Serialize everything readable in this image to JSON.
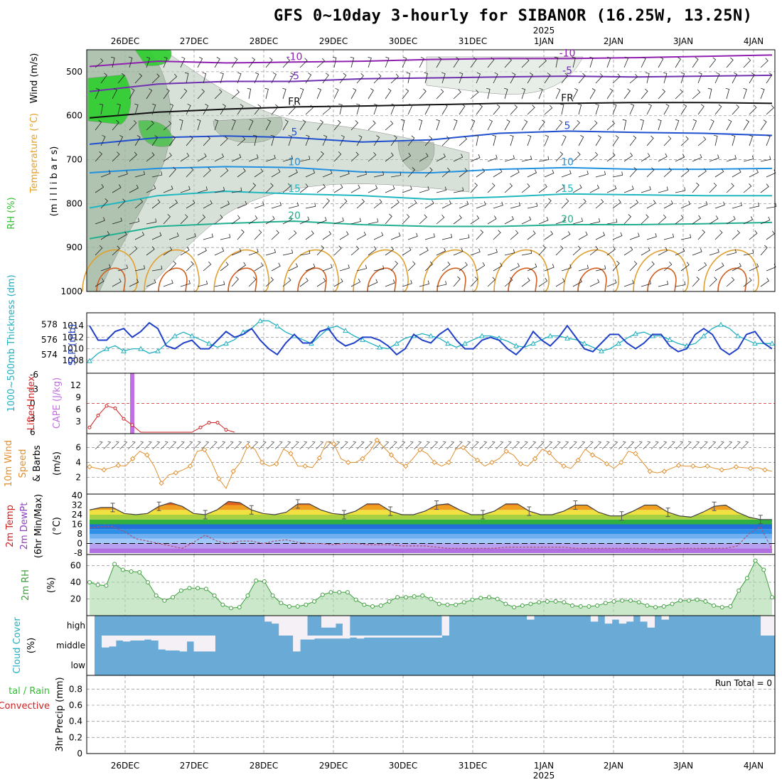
{
  "title": "GFS 0~10day 3-hourly for SIBANOR (16.25W, 13.25N)",
  "colors": {
    "rh_green": "#2fbf2f",
    "temp_red": "#d02020",
    "temp_orange": "#e8a020",
    "dew_purple": "#9040c0",
    "cape_purple": "#c070e0",
    "slp_blue": "#2040c8",
    "thick_cyan": "#20b0c0",
    "wind_orange": "#e09030",
    "rh2m_green": "#40a040",
    "cloud_blue": "#6aaad6",
    "cloud_white": "#f4f0f6",
    "precip_green": "#30c030"
  },
  "chart_data": [
    {
      "type": "area",
      "id": "upper-air",
      "ylabel": [
        "RH (%)",
        "Temperature (°C)",
        "Wind (m/s)",
        "(m i l l i b a r s)"
      ],
      "x_dates": [
        "26DEC",
        "27DEC",
        "28DEC",
        "29DEC",
        "30DEC",
        "31DEC",
        "1JAN",
        "2JAN",
        "3JAN",
        "4JAN"
      ],
      "year_label": "2025",
      "yticks": [
        500,
        600,
        700,
        800,
        900,
        1000
      ],
      "ylim": [
        450,
        1000
      ],
      "isotherms": [
        {
          "label": "-10",
          "levels": [
            488,
            476,
            480,
            478,
            476,
            472,
            470,
            470,
            468,
            465,
            462
          ]
        },
        {
          "label": "-5",
          "levels": [
            545,
            528,
            522,
            522,
            516,
            514,
            512,
            510,
            512,
            510,
            508
          ]
        },
        {
          "label": "FR",
          "levels": [
            605,
            592,
            585,
            580,
            578,
            575,
            572,
            572,
            570,
            570,
            572
          ]
        },
        {
          "label": "5",
          "levels": [
            665,
            650,
            646,
            650,
            660,
            655,
            640,
            635,
            638,
            640,
            645
          ]
        },
        {
          "label": "10",
          "levels": [
            730,
            720,
            716,
            718,
            728,
            730,
            722,
            718,
            722,
            722,
            720
          ]
        },
        {
          "label": "15",
          "levels": [
            810,
            782,
            772,
            778,
            782,
            790,
            785,
            778,
            780,
            782,
            782
          ]
        },
        {
          "label": "20",
          "levels": [
            880,
            852,
            845,
            840,
            848,
            852,
            852,
            848,
            848,
            846,
            843
          ]
        }
      ],
      "contour_labels": [
        "-10",
        "-5",
        "FR",
        "5",
        "10",
        "15",
        "20",
        "-10",
        "-5",
        "FR",
        "5",
        "10",
        "15",
        "20"
      ]
    },
    {
      "type": "line",
      "id": "slp-thickness",
      "ylabel_left": "1000~500mb Thickness (dm)",
      "ylabel_right": "SLP (mb)",
      "left_ticks": [
        574,
        576,
        578
      ],
      "right_ticks": [
        1008,
        1010,
        1012,
        1014
      ],
      "series": [
        {
          "name": "SLP (mb)",
          "values": [
            1014,
            1011.5,
            1011.5,
            1013,
            1013.5,
            1012,
            1013,
            1014.5,
            1013.5,
            1010.5,
            1010,
            1011,
            1011.5,
            1010,
            1010,
            1011.5,
            1013,
            1012,
            1012.5,
            1013.5,
            1011.5,
            1010,
            1009,
            1011,
            1012.5,
            1011,
            1011,
            1013,
            1013.5,
            1011.5,
            1010.5,
            1011,
            1012,
            1012,
            1011.5,
            1010.5,
            1009,
            1010,
            1012.5,
            1011.5,
            1011,
            1012.5,
            1013.5,
            1011.5,
            1010,
            1010,
            1011.5,
            1012,
            1011.5,
            1010,
            1009,
            1010.5,
            1013,
            1011.5,
            1010.5,
            1012,
            1014,
            1012,
            1010,
            1009.5,
            1011,
            1012.5,
            1012.5,
            1011,
            1010,
            1011,
            1012.5,
            1012.5,
            1010.5,
            1009.5,
            1010,
            1012.5,
            1013.5,
            1012.5,
            1010,
            1009,
            1010,
            1012.5,
            1013,
            1011,
            1010
          ]
        },
        {
          "name": "1000~500mb Thickness (dm)",
          "values": [
            573.2,
            574.2,
            574.8,
            575.2,
            574.5,
            574.8,
            574.8,
            574.2,
            574.5,
            575.5,
            576.5,
            577,
            576.5,
            576,
            575.5,
            575,
            575.5,
            576,
            577,
            577.5,
            578.5,
            578.5,
            577.8,
            577,
            576.5,
            576,
            575.5,
            576.5,
            577.5,
            577.8,
            577.2,
            576.5,
            576,
            575.5,
            575,
            574.8,
            575.5,
            576.2,
            576.5,
            576.8,
            576.5,
            576.2,
            575.5,
            575,
            575.5,
            576,
            576.5,
            576.5,
            576.2,
            575.8,
            575.2,
            575,
            575.5,
            576,
            576.5,
            576.5,
            576.2,
            576,
            575.5,
            575,
            574.5,
            574.8,
            575.5,
            576.2,
            576.8,
            577,
            576.5,
            576.5,
            576,
            575.5,
            575.2,
            575.5,
            576.5,
            577.5,
            578,
            577.5,
            576.5,
            576,
            575.5,
            575.5,
            575.5
          ]
        }
      ]
    },
    {
      "type": "bar",
      "id": "cape-li",
      "ylabel_left": "Lifted Index",
      "ylabel_right": "CAPE (J/kg)",
      "left_ticks": [
        "-6",
        "-3",
        "0",
        "3",
        "6"
      ],
      "right_ticks": [
        3,
        6,
        9,
        12
      ],
      "cape": [
        {
          "x": 5,
          "value": 15
        }
      ],
      "lifted_index": [
        5,
        2.5,
        0.5,
        1,
        3.2,
        4.5,
        6,
        6,
        6,
        6,
        6,
        6,
        6,
        5,
        4,
        4,
        5.5,
        6
      ]
    },
    {
      "type": "line",
      "id": "wind10m",
      "ylabel": [
        "10m Wind",
        "Speed",
        "& Barbs",
        "(m/s)"
      ],
      "yticks": [
        2,
        4,
        6
      ],
      "series": [
        {
          "name": "10m Wind Speed",
          "values": [
            3.4,
            3.2,
            3,
            3.3,
            3.6,
            3.5,
            4.5,
            5.5,
            5,
            3.5,
            1.2,
            2.3,
            2.6,
            3,
            3.5,
            5.5,
            5.7,
            4,
            1.8,
            0.5,
            2.8,
            4,
            6.2,
            5.8,
            4,
            3.5,
            3.8,
            5.8,
            5.2,
            3.5,
            3.5,
            3.3,
            4.6,
            6.8,
            6.5,
            4.5,
            4,
            4,
            4.5,
            5.5,
            7,
            6,
            5,
            4,
            3.5,
            4.5,
            5.7,
            5.2,
            4,
            3.5,
            4,
            5.8,
            6,
            5,
            4.3,
            3.5,
            4,
            4.5,
            5.5,
            5,
            3.8,
            3.5,
            4.5,
            5.8,
            5.3,
            4.2,
            3.5,
            3.2,
            4.3,
            5.8,
            5,
            4.5,
            3.8,
            3.2,
            4,
            5.5,
            5.2,
            4,
            2.8,
            2.6,
            2.8,
            3.2,
            3.6,
            3.5,
            3.5,
            3.3,
            3.5,
            3.2,
            3,
            3.1,
            3.4,
            3.3,
            3.2,
            3.3,
            3,
            2.8
          ]
        }
      ]
    },
    {
      "type": "area",
      "id": "temp2m",
      "ylabel": [
        "2m Temp",
        "2m DewPt",
        "(6hr Min/Max)",
        "(°C)"
      ],
      "yticks": [
        -8,
        0,
        8,
        16,
        24,
        32,
        40
      ],
      "series": [
        {
          "name": "2m Temp",
          "values": [
            28,
            30,
            30,
            25,
            24,
            25,
            31,
            34,
            31,
            25,
            24,
            28,
            35,
            34,
            28,
            25,
            24,
            26,
            33,
            33,
            28,
            25,
            24,
            27,
            33,
            33,
            27,
            24,
            24,
            27,
            32,
            33,
            28,
            24,
            24,
            27,
            33,
            33,
            27,
            24,
            24,
            27,
            32,
            32,
            26,
            23,
            23,
            27,
            32,
            32,
            26,
            23,
            22,
            26,
            31,
            32,
            26,
            22,
            20,
            20
          ]
        },
        {
          "name": "2m DewPt",
          "values": [
            13,
            14,
            14,
            10,
            4,
            2,
            0,
            -2,
            -4,
            1,
            7,
            2,
            0,
            2,
            2,
            0,
            2,
            3,
            1,
            0,
            0,
            -1,
            0,
            0,
            -1,
            -1,
            -1,
            -2,
            -2,
            -2,
            -3,
            -4,
            -4,
            -4,
            -4,
            -4,
            -3,
            -3,
            -3,
            -3,
            -3,
            -3,
            -4,
            -4,
            -4,
            -4,
            -4,
            -4,
            -4,
            -5,
            -5,
            -4,
            -4,
            -4,
            -4,
            -4,
            -2,
            8,
            14,
            -5
          ]
        }
      ]
    },
    {
      "type": "area",
      "id": "rh2m",
      "ylabel": [
        "2m RH",
        "(%)"
      ],
      "yticks": [
        20,
        40,
        60
      ],
      "series": [
        {
          "name": "2m RH",
          "values": [
            40,
            37,
            36,
            62,
            55,
            53,
            52,
            40,
            24,
            18,
            22,
            30,
            33,
            33,
            32,
            24,
            13,
            9,
            10,
            24,
            42,
            41,
            24,
            15,
            11,
            11,
            13,
            17,
            25,
            28,
            28,
            28,
            19,
            13,
            11,
            12,
            17,
            22,
            22,
            23,
            24,
            20,
            14,
            13,
            13,
            16,
            19,
            21,
            22,
            20,
            14,
            10,
            12,
            14,
            16,
            17,
            17,
            16,
            12,
            11,
            11,
            12,
            15,
            17,
            18,
            18,
            16,
            12,
            10,
            11,
            14,
            18,
            18,
            19,
            17,
            12,
            10,
            11,
            30,
            45,
            66,
            55,
            22
          ]
        }
      ]
    },
    {
      "type": "bar",
      "id": "cloud-cover",
      "ylabel": [
        "Cloud Cover",
        "(%)"
      ],
      "levels": [
        "high",
        "middle",
        "low"
      ],
      "high": [
        0,
        0,
        0,
        0,
        0,
        0,
        0,
        0,
        0,
        0,
        0,
        0,
        0,
        0,
        0,
        0,
        0,
        0,
        0,
        0,
        0,
        0,
        0,
        0,
        30,
        40,
        100,
        100,
        100,
        100,
        0,
        0,
        60,
        60,
        40,
        100,
        0,
        0,
        0,
        0,
        0,
        0,
        0,
        0,
        0,
        0,
        0,
        0,
        0,
        100,
        0,
        0,
        0,
        0,
        0,
        0,
        0,
        0,
        0,
        0,
        0,
        20,
        0,
        0,
        0,
        0,
        0,
        0,
        0,
        0,
        30,
        0,
        40,
        20,
        40,
        30,
        0,
        30,
        60,
        0,
        20,
        0,
        0,
        0,
        0,
        0,
        0,
        0,
        0,
        0,
        0,
        0,
        0,
        0,
        100,
        100
      ],
      "middle": [
        0,
        60,
        55,
        25,
        30,
        25,
        25,
        20,
        25,
        70,
        75,
        75,
        80,
        30,
        80,
        80,
        80,
        0,
        0,
        0,
        0,
        0,
        0,
        0,
        0,
        0,
        0,
        0,
        80,
        20,
        20,
        15,
        15,
        15,
        15,
        15,
        10,
        15,
        10,
        10,
        10,
        10,
        10,
        10,
        10,
        10,
        10,
        10,
        10,
        0,
        0,
        0,
        0,
        0,
        0,
        0,
        0,
        0,
        0,
        0,
        0,
        0,
        0,
        0,
        0,
        0,
        0,
        0,
        0,
        0,
        0,
        0,
        0,
        0,
        0,
        0,
        0,
        0,
        0,
        0,
        0,
        0,
        0,
        0,
        0,
        0,
        0,
        0,
        0,
        0,
        0,
        0,
        0,
        0,
        0,
        0
      ]
    },
    {
      "type": "bar",
      "id": "precip",
      "ylabel": [
        "3hr Precip (mm)"
      ],
      "legend": [
        "tal / Rain",
        "Convective"
      ],
      "yticks": [
        0,
        0.2,
        0.4,
        0.6,
        0.8
      ],
      "run_total": "Run Total = 0",
      "values": []
    }
  ]
}
